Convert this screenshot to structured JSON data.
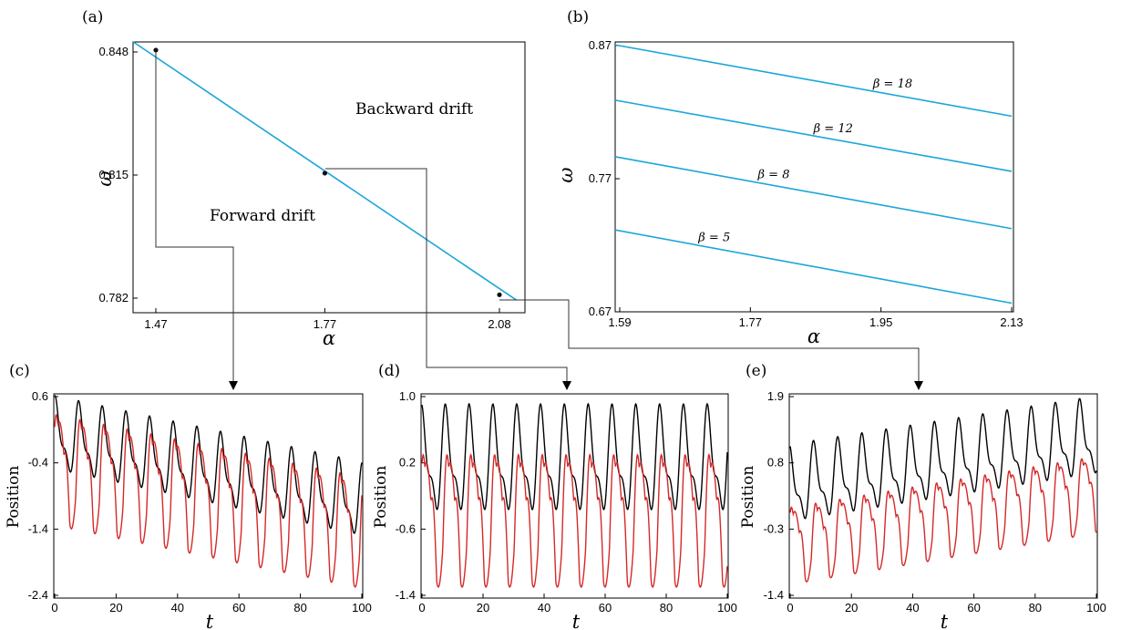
{
  "colors": {
    "blue": "#1ba6d8",
    "red": "#d62828",
    "black": "#000000",
    "connector": "#333333"
  },
  "chart_data": [
    {
      "id": "a",
      "panel_label": "(a)",
      "type": "line",
      "xlabel": "α",
      "ylabel": "ω",
      "xticks": [
        "1.47",
        "1.77",
        "2.08"
      ],
      "yticks": [
        "0.848",
        "0.815",
        "0.782"
      ],
      "xlim": [
        1.47,
        2.08
      ],
      "ylim": [
        0.782,
        0.848
      ],
      "series": [
        {
          "x": [
            1.43,
            2.11
          ],
          "y": [
            0.851,
            0.7815
          ]
        }
      ],
      "points": [
        {
          "x": 1.47,
          "y": 0.8485
        },
        {
          "x": 1.77,
          "y": 0.8155
        },
        {
          "x": 2.08,
          "y": 0.7829
        }
      ],
      "annotations": [
        "Backward drift",
        "Forward drift"
      ]
    },
    {
      "id": "b",
      "panel_label": "(b)",
      "type": "line",
      "xlabel": "α",
      "ylabel": "ω",
      "xticks": [
        "1.59",
        "1.77",
        "1.95",
        "2.13"
      ],
      "yticks": [
        "0.87",
        "0.77",
        "0.67"
      ],
      "xlim": [
        1.59,
        2.13
      ],
      "ylim": [
        0.67,
        0.87
      ],
      "series": [
        {
          "name": "β = 18",
          "x": [
            1.575,
            2.13
          ],
          "y": [
            0.8705,
            0.817
          ]
        },
        {
          "name": "β = 12",
          "x": [
            1.575,
            2.13
          ],
          "y": [
            0.829,
            0.7755
          ]
        },
        {
          "name": "β = 8",
          "x": [
            1.575,
            2.13
          ],
          "y": [
            0.7865,
            0.7325
          ]
        },
        {
          "name": "β = 5",
          "x": [
            1.575,
            2.13
          ],
          "y": [
            0.7315,
            0.6765
          ]
        }
      ]
    },
    {
      "id": "c",
      "panel_label": "(c)",
      "type": "line",
      "xlabel": "t",
      "ylabel": "Position",
      "xticks": [
        "0",
        "20",
        "40",
        "60",
        "80",
        "100"
      ],
      "yticks": [
        "0.6",
        "-0.4",
        "-1.4",
        "-2.4"
      ],
      "xlim": [
        0,
        100
      ],
      "ylim": [
        -2.4,
        0.6
      ],
      "series": [
        {
          "color": "black",
          "period": 7.7,
          "phase": 1.2,
          "drift_start": 0.0,
          "drift_end": -1.0,
          "amplitude": 0.65
        },
        {
          "color": "red",
          "period": 7.7,
          "phase": 0.3,
          "drift_start": -0.4,
          "drift_end": -1.35,
          "amplitude": 1.05
        }
      ]
    },
    {
      "id": "d",
      "panel_label": "(d)",
      "type": "line",
      "xlabel": "t",
      "ylabel": "Position",
      "xticks": [
        "0",
        "20",
        "40",
        "60",
        "80",
        "100"
      ],
      "yticks": [
        "1.0",
        "0.2",
        "-0.6",
        "-1.4"
      ],
      "xlim": [
        0,
        100
      ],
      "ylim": [
        -1.4,
        1.0
      ],
      "series": [
        {
          "color": "black",
          "period": 7.8,
          "phase": 1.4,
          "drift_start": 0.2,
          "drift_end": 0.2,
          "amplitude": 0.75
        },
        {
          "color": "red",
          "period": 7.8,
          "phase": 0.4,
          "drift_start": -0.4,
          "drift_end": -0.4,
          "amplitude": 1.0
        }
      ]
    },
    {
      "id": "e",
      "panel_label": "(e)",
      "type": "line",
      "xlabel": "t",
      "ylabel": "Position",
      "xticks": [
        "0",
        "20",
        "40",
        "60",
        "80",
        "100"
      ],
      "yticks": [
        "1.9",
        "0.8",
        "-0.3",
        "-1.4"
      ],
      "xlim": [
        0,
        100
      ],
      "ylim": [
        -1.4,
        1.9
      ],
      "series": [
        {
          "color": "black",
          "period": 7.9,
          "phase": 1.5,
          "drift_start": 0.4,
          "drift_end": 1.2,
          "amplitude": 0.75
        },
        {
          "color": "red",
          "period": 7.9,
          "phase": 0.4,
          "drift_start": -0.5,
          "drift_end": 0.35,
          "amplitude": 0.8
        }
      ]
    }
  ]
}
